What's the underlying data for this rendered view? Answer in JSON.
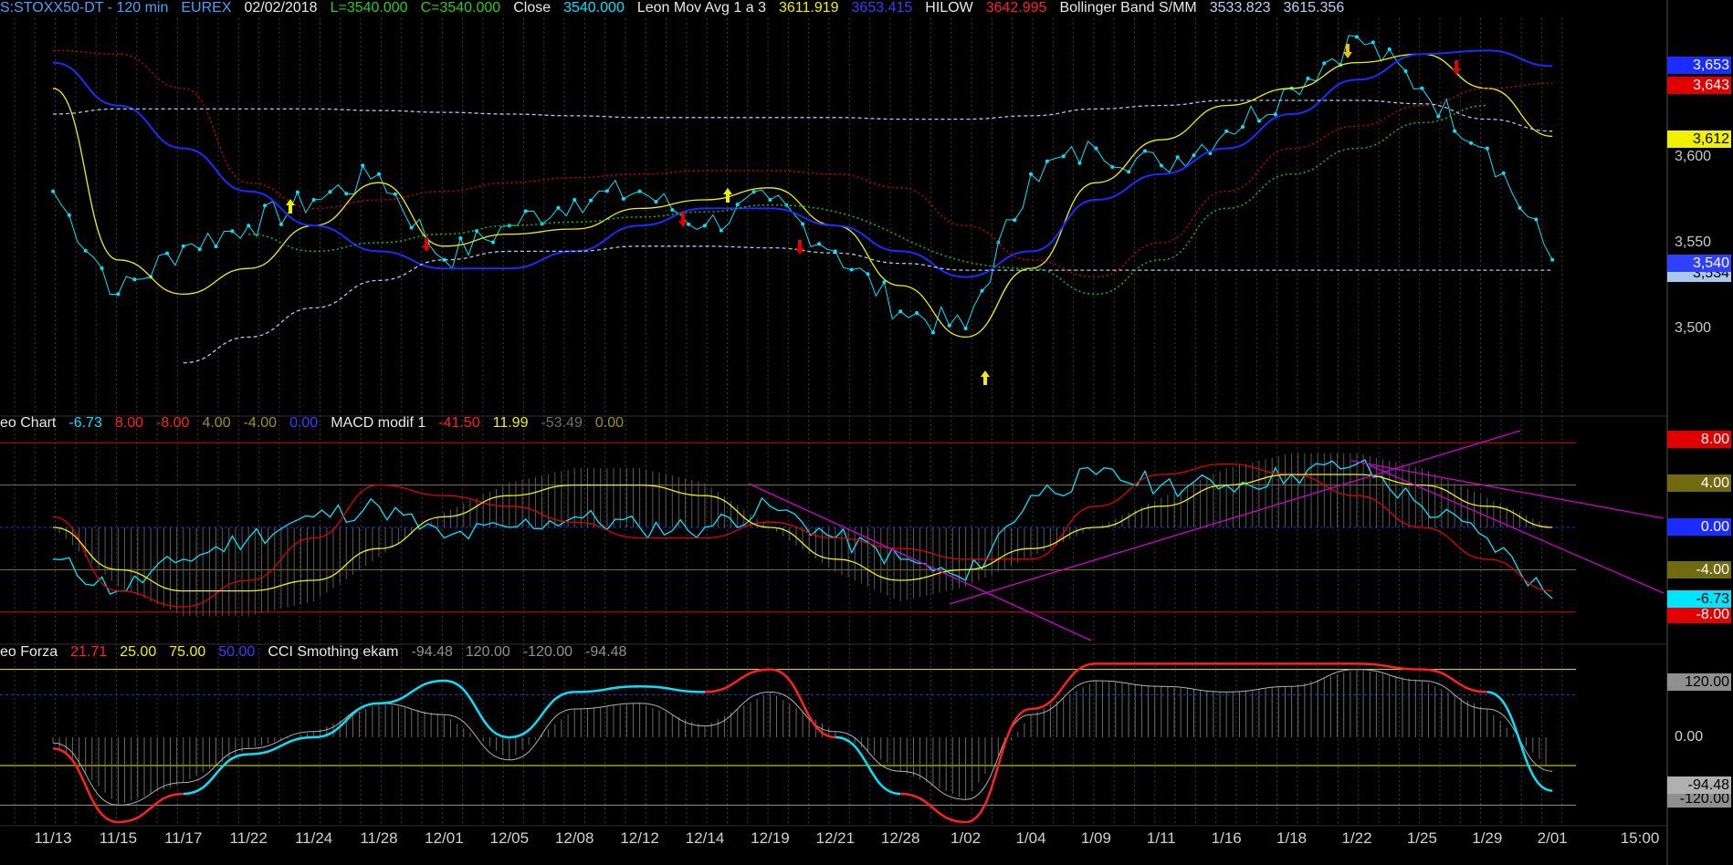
{
  "price_panel_header": {
    "symbol": "S:STOXX50-DT - 120 min",
    "exchange": "EUREX",
    "date": "02/02/2018",
    "low": "L=3540.000",
    "close_eq": "C=3540.000",
    "close_label": "Close",
    "close_value": "3540.000",
    "ma_label": "Leon Mov Avg 1 a 3",
    "ma_v1": "3611.919",
    "ma_v2": "3653.415",
    "hilow_label": "HILOW",
    "hilow_value": "3642.995",
    "bb_label": "Bollinger Band S/MM",
    "bb_v1": "3533.823",
    "bb_v2": "3615.356"
  },
  "macd_panel_header": {
    "label": "eo Chart",
    "v1": "-6.73",
    "v2": "8.00",
    "v3": "-8.00",
    "v4": "4.00",
    "v5": "-4.00",
    "v6": "0.00",
    "macd_label": "MACD modif 1",
    "m1": "-41.50",
    "m2": "11.99",
    "m3": "-53.49",
    "m4": "0.00"
  },
  "cci_panel_header": {
    "label": "eo Forza",
    "v1": "21.71",
    "v2": "25.00",
    "v3": "75.00",
    "v4": "50.00",
    "cci_label": "CCI Smothing ekam",
    "c1": "-94.48",
    "c2": "120.00",
    "c3": "-120.00",
    "c4": "-94.48"
  },
  "price_axis": {
    "labels": [
      "3,600",
      "3,550",
      "3,500"
    ],
    "tags": {
      "t3653": "3,653",
      "t3643": "3,643",
      "t3612": "3,612",
      "t3540": "3,540",
      "t3534": "3,534"
    }
  },
  "macd_axis": {
    "tags": {
      "p8": "8.00",
      "p4": "4.00",
      "z": "0.00",
      "m4": "-4.00",
      "cur": "-6.73",
      "m8": "-8.00"
    }
  },
  "cci_axis": {
    "tags": {
      "p120": "120.00",
      "z": "0.00",
      "cur": "-94.48",
      "m120": "-120.00"
    }
  },
  "x_axis": {
    "labels": [
      "11/13",
      "11/15",
      "11/17",
      "11/22",
      "11/24",
      "11/28",
      "12/01",
      "12/05",
      "12/08",
      "12/12",
      "12/14",
      "12/19",
      "12/21",
      "12/28",
      "1/02",
      "1/04",
      "1/09",
      "1/11",
      "1/16",
      "1/18",
      "1/22",
      "1/25",
      "1/29",
      "2/01",
      "15:00"
    ]
  },
  "colors": {
    "close": "#00e5ff",
    "ma_yellow": "#f0f000",
    "ma_blue": "#1a2cff",
    "hilow": "#e00000",
    "bb": "#a9c9ee",
    "macd_red": "#e00000",
    "trendline": "#d000d0"
  },
  "chart_data": [
    {
      "type": "line",
      "title": "S:STOXX50-DT - 120 min",
      "x": [
        "11/13",
        "11/15",
        "11/17",
        "11/22",
        "11/24",
        "11/28",
        "12/01",
        "12/05",
        "12/08",
        "12/12",
        "12/14",
        "12/19",
        "12/21",
        "12/28",
        "1/02",
        "1/04",
        "1/09",
        "1/11",
        "1/16",
        "1/18",
        "1/22",
        "1/25",
        "1/29",
        "2/01"
      ],
      "ylim": [
        3470,
        3690
      ],
      "series": [
        {
          "name": "Close",
          "values": [
            3580,
            3520,
            3548,
            3560,
            3575,
            3590,
            3540,
            3560,
            3575,
            3580,
            3560,
            3575,
            3545,
            3510,
            3500,
            3590,
            3605,
            3595,
            3615,
            3640,
            3670,
            3640,
            3605,
            3540
          ]
        },
        {
          "name": "Leon Mov Avg 1 a 3",
          "values": [
            3640,
            3540,
            3520,
            3535,
            3560,
            3585,
            3548,
            3555,
            3558,
            3570,
            3575,
            3582,
            3560,
            3525,
            3495,
            3535,
            3585,
            3610,
            3630,
            3640,
            3655,
            3660,
            3640,
            3612
          ]
        },
        {
          "name": "Leon Mov Avg 1 a 3 (blue)",
          "values": [
            3655,
            3630,
            3605,
            3580,
            3560,
            3545,
            3535,
            3535,
            3545,
            3560,
            3570,
            3570,
            3560,
            3545,
            3530,
            3545,
            3575,
            3590,
            3605,
            3625,
            3645,
            3660,
            3662,
            3653
          ]
        },
        {
          "name": "HILOW",
          "values": [
            3662,
            3660,
            3640,
            3585,
            3570,
            3575,
            3580,
            3585,
            3588,
            3590,
            3592,
            3592,
            3590,
            3582,
            3560,
            3540,
            3530,
            3550,
            3580,
            3605,
            3618,
            3630,
            3640,
            3643
          ]
        },
        {
          "name": "Bollinger Band S/MM",
          "values": [
            3625,
            3628,
            3628,
            3628,
            3628,
            3627,
            3626,
            3625,
            3624,
            3623,
            3623,
            3623,
            3623,
            3622,
            3622,
            3624,
            3628,
            3630,
            3633,
            3633,
            3633,
            3631,
            3622,
            3615
          ]
        },
        {
          "name": "Bollinger Band S/MM (lower)",
          "values": [
            null,
            null,
            3480,
            3495,
            3512,
            3528,
            3540,
            3545,
            3545,
            3548,
            3548,
            3547,
            3544,
            3538,
            3534,
            3534,
            3534,
            3534,
            3534,
            3534,
            3534,
            3534,
            3534,
            3534
          ]
        }
      ]
    },
    {
      "type": "line",
      "title": "MACD modif 1",
      "x": [
        "11/13",
        "11/15",
        "11/17",
        "11/22",
        "11/24",
        "11/28",
        "12/01",
        "12/05",
        "12/08",
        "12/12",
        "12/14",
        "12/19",
        "12/21",
        "12/28",
        "1/02",
        "1/04",
        "1/09",
        "1/11",
        "1/16",
        "1/18",
        "1/22",
        "1/25",
        "1/29",
        "2/01"
      ],
      "ylim": [
        -9,
        10
      ],
      "series": [
        {
          "name": "cyan",
          "values": [
            -3,
            -6,
            -3,
            -1,
            1,
            2,
            -1,
            0,
            1,
            0,
            0,
            2,
            -1,
            -3,
            -5,
            3,
            5,
            4,
            4,
            5,
            6,
            2,
            -1,
            -6.73
          ]
        },
        {
          "name": "red",
          "values": [
            1,
            -6,
            -7.5,
            -5,
            -1,
            4,
            3,
            2,
            0.5,
            -1,
            -1,
            0.5,
            -1,
            -2,
            -3,
            -3,
            2,
            5,
            6,
            5,
            3,
            0,
            -3,
            -6
          ]
        },
        {
          "name": "yellow",
          "values": [
            0,
            -4,
            -6,
            -6,
            -5,
            -2,
            1,
            3,
            4,
            4,
            3,
            0,
            -3,
            -5,
            -4,
            -2,
            0,
            2,
            4,
            5,
            5,
            4,
            2,
            0
          ]
        }
      ]
    },
    {
      "type": "line",
      "title": "CCI Smothing ekam",
      "x": [
        "11/13",
        "11/15",
        "11/17",
        "11/22",
        "11/24",
        "11/28",
        "12/01",
        "12/05",
        "12/08",
        "12/12",
        "12/14",
        "12/19",
        "12/21",
        "12/28",
        "1/02",
        "1/04",
        "1/09",
        "1/11",
        "1/16",
        "1/18",
        "1/22",
        "1/25",
        "1/29",
        "2/01"
      ],
      "ylim": [
        -150,
        140
      ],
      "series": [
        {
          "name": "CCI",
          "values": [
            -20,
            -150,
            -100,
            -30,
            0,
            60,
            100,
            0,
            80,
            90,
            80,
            120,
            0,
            -100,
            -150,
            50,
            130,
            130,
            130,
            130,
            130,
            120,
            80,
            -94.48
          ]
        },
        {
          "name": "histogram",
          "values": [
            -10,
            -120,
            -80,
            -20,
            10,
            60,
            40,
            -40,
            50,
            60,
            20,
            80,
            10,
            -60,
            -110,
            40,
            100,
            90,
            80,
            90,
            120,
            100,
            50,
            -60
          ]
        }
      ]
    }
  ]
}
